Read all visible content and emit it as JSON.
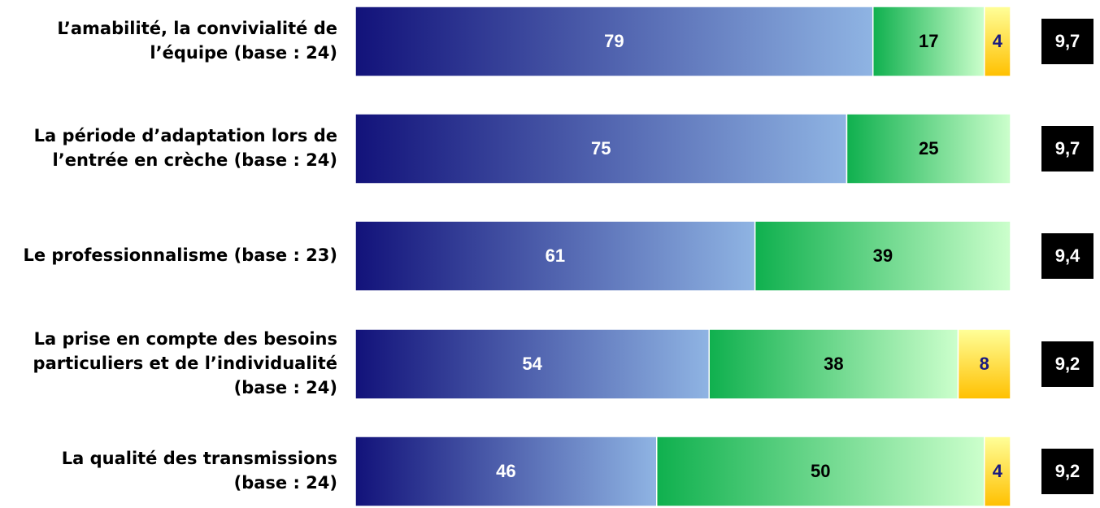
{
  "chart_data": {
    "type": "stacked-bar-horizontal",
    "categories": [
      [
        "L’amabilité, la convivialité de",
        "l’équipe (base : 24)"
      ],
      [
        "La période d’adaptation lors de",
        "l’entrée en crèche (base : 24)"
      ],
      [
        "Le professionnalisme (base : 23)"
      ],
      [
        "La prise en compte des besoins",
        "particuliers et de l’individualité",
        "(base : 24)"
      ],
      [
        "La qualité des transmissions",
        "(base : 24)"
      ]
    ],
    "series": [
      {
        "color": [
          "#12127a",
          "#8fb4e3"
        ],
        "label_color": "#ffffff",
        "values": [
          79,
          75,
          61,
          54,
          46
        ]
      },
      {
        "color": [
          "#0fb04e",
          "#ccffcc"
        ],
        "label_color": "#000000",
        "values": [
          17,
          25,
          39,
          38,
          50
        ]
      },
      {
        "color": [
          "#ffff99",
          "#ffc000"
        ],
        "label_color": "#1a1a80",
        "values": [
          4,
          null,
          null,
          8,
          4
        ]
      }
    ],
    "scores": {
      "values": [
        9.7,
        9.7,
        9.4,
        9.2,
        9.2
      ],
      "value_labels": [
        "9,7",
        "9,7",
        "9,4",
        "9,2",
        "9,2"
      ]
    },
    "xlim": [
      0,
      100
    ]
  }
}
